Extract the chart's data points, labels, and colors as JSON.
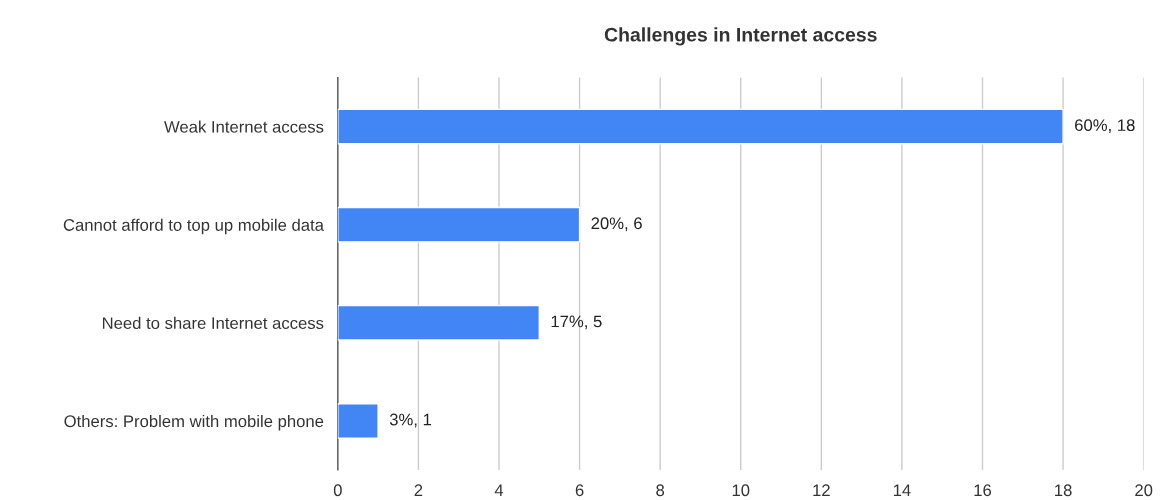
{
  "chart_data": {
    "type": "bar",
    "orientation": "horizontal",
    "title": "Challenges in Internet access",
    "categories": [
      "Weak Internet access",
      "Cannot afford to top up mobile data",
      "Need to share Internet access",
      "Others: Problem with mobile phone"
    ],
    "values": [
      18,
      6,
      5,
      1
    ],
    "value_labels": [
      "60%, 18",
      "20%, 6",
      "17%, 5",
      "3%, 1"
    ],
    "color": "#4285f4",
    "xlim": [
      0,
      20
    ],
    "xticks": [
      0,
      2,
      4,
      6,
      8,
      10,
      12,
      14,
      16,
      18,
      20
    ],
    "grid": "x"
  }
}
